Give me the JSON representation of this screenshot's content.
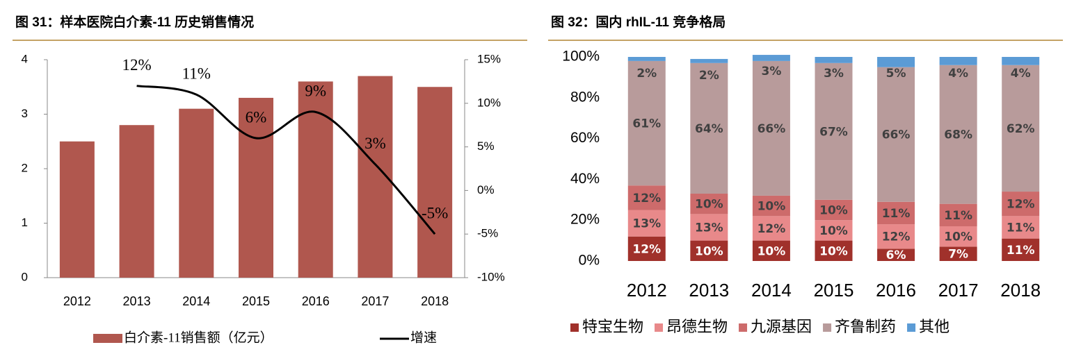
{
  "chart_data": [
    {
      "type": "bar",
      "title": "图 31：样本医院白介素-11 历史销售情况",
      "categories": [
        "2012",
        "2013",
        "2014",
        "2015",
        "2016",
        "2017",
        "2018"
      ],
      "series": [
        {
          "name": "白介素-11销售额（亿元）",
          "type": "bar",
          "color": "#b0574e",
          "values": [
            2.5,
            2.8,
            3.1,
            3.3,
            3.6,
            3.7,
            3.5
          ]
        },
        {
          "name": "增速",
          "type": "line",
          "axis": "y2",
          "color": "#000000",
          "values": [
            null,
            12,
            11,
            6,
            9,
            3,
            -5
          ],
          "value_labels": [
            null,
            "12%",
            "11%",
            "6%",
            "9%",
            "3%",
            "-5%"
          ]
        }
      ],
      "ylim": [
        0,
        4
      ],
      "yticks": [
        0,
        1,
        2,
        3,
        4
      ],
      "y2lim": [
        -10,
        15
      ],
      "y2ticks": [
        {
          "value": -10,
          "label": "-10%"
        },
        {
          "value": -5,
          "label": "-5%"
        },
        {
          "value": 0,
          "label": "0%"
        },
        {
          "value": 5,
          "label": "5%"
        },
        {
          "value": 10,
          "label": "10%"
        },
        {
          "value": 15,
          "label": "15%"
        }
      ],
      "legend": "bottom"
    },
    {
      "type": "stacked_bar",
      "title": "图 32：国内 rhIL-11 竞争格局",
      "categories": [
        "2012",
        "2013",
        "2014",
        "2015",
        "2016",
        "2017",
        "2018"
      ],
      "series": [
        {
          "name": "特宝生物",
          "color": "#a0312b",
          "values": [
            12,
            10,
            10,
            10,
            6,
            7,
            11
          ],
          "value_labels": [
            "12%",
            "10%",
            "10%",
            "10%",
            "6%",
            "7%",
            "11%"
          ]
        },
        {
          "name": "昂德生物",
          "color": "#e8898a",
          "values": [
            13,
            13,
            12,
            10,
            12,
            10,
            11
          ],
          "value_labels": [
            "13%",
            "13%",
            "12%",
            "10%",
            "12%",
            "10%",
            "11%"
          ]
        },
        {
          "name": "九源基因",
          "color": "#cd6b6b",
          "values": [
            12,
            10,
            10,
            10,
            11,
            11,
            12
          ],
          "value_labels": [
            "12%",
            "10%",
            "10%",
            "10%",
            "11%",
            "11%",
            "12%"
          ]
        },
        {
          "name": "齐鲁制药",
          "color": "#b89b9b",
          "values": [
            61,
            64,
            66,
            67,
            66,
            68,
            62
          ],
          "value_labels": [
            "61%",
            "64%",
            "66%",
            "67%",
            "66%",
            "68%",
            "62%"
          ]
        },
        {
          "name": "其他",
          "color": "#5b9bd5",
          "values": [
            2,
            2,
            3,
            3,
            5,
            4,
            4
          ],
          "value_labels": [
            "2%",
            "2%",
            "3%",
            "3%",
            "5%",
            "4%",
            "4%"
          ]
        }
      ],
      "ylim": [
        0,
        100
      ],
      "yticks": [
        {
          "value": 0,
          "label": "0%"
        },
        {
          "value": 20,
          "label": "20%"
        },
        {
          "value": 40,
          "label": "40%"
        },
        {
          "value": 60,
          "label": "60%"
        },
        {
          "value": 80,
          "label": "80%"
        },
        {
          "value": 100,
          "label": "100%"
        }
      ],
      "legend": "bottom"
    }
  ]
}
